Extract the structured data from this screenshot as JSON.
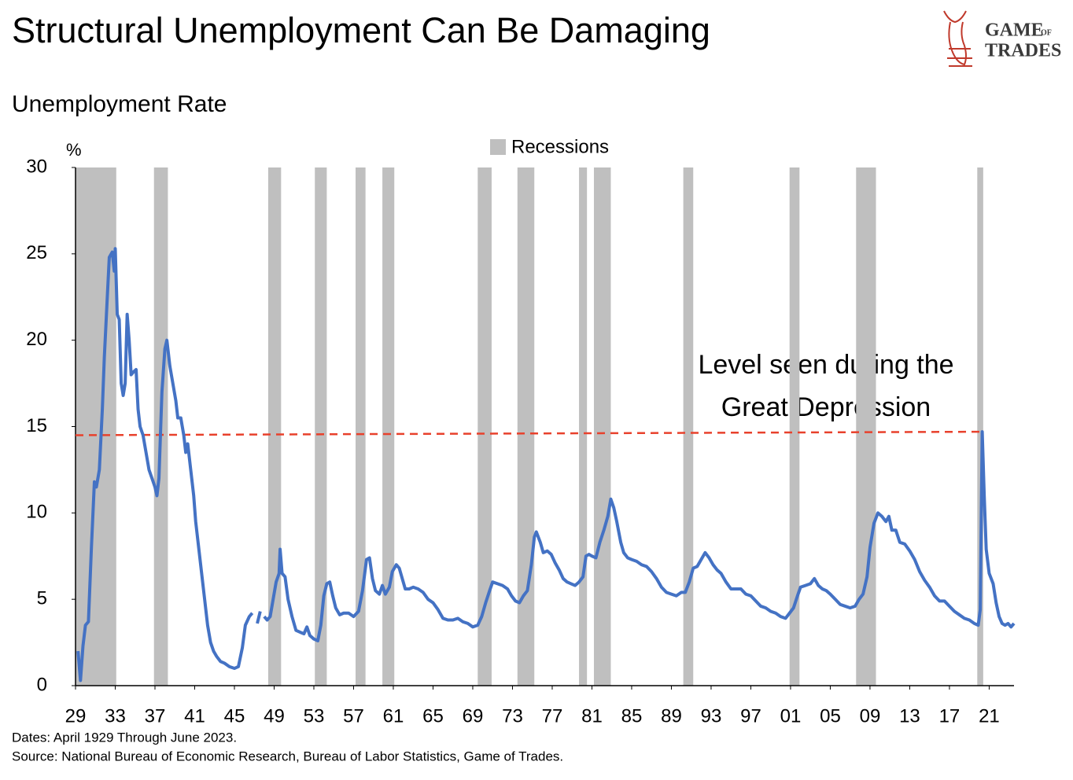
{
  "chart_data": {
    "type": "line",
    "title": "Structural Unemployment Can Be Damaging",
    "subtitle": "Unemployment Rate",
    "y_unit": "%",
    "xlim": [
      1929,
      2023.5
    ],
    "xticks": [
      {
        "value": 1929,
        "label": "29"
      },
      {
        "value": 1933,
        "label": "33"
      },
      {
        "value": 1937,
        "label": "37"
      },
      {
        "value": 1941,
        "label": "41"
      },
      {
        "value": 1945,
        "label": "45"
      },
      {
        "value": 1949,
        "label": "49"
      },
      {
        "value": 1953,
        "label": "53"
      },
      {
        "value": 1957,
        "label": "57"
      },
      {
        "value": 1961,
        "label": "61"
      },
      {
        "value": 1965,
        "label": "65"
      },
      {
        "value": 1969,
        "label": "69"
      },
      {
        "value": 1973,
        "label": "73"
      },
      {
        "value": 1977,
        "label": "77"
      },
      {
        "value": 1981,
        "label": "81"
      },
      {
        "value": 1985,
        "label": "85"
      },
      {
        "value": 1989,
        "label": "89"
      },
      {
        "value": 1993,
        "label": "93"
      },
      {
        "value": 1997,
        "label": "97"
      },
      {
        "value": 2001,
        "label": "01"
      },
      {
        "value": 2005,
        "label": "05"
      },
      {
        "value": 2009,
        "label": "09"
      },
      {
        "value": 2013,
        "label": "13"
      },
      {
        "value": 2017,
        "label": "17"
      },
      {
        "value": 2021,
        "label": "21"
      }
    ],
    "ylim": [
      0,
      30
    ],
    "yticks": [
      0,
      5,
      10,
      15,
      20,
      25,
      30
    ],
    "x": [
      1929.25,
      1929.5,
      1929.75,
      1930.0,
      1930.3,
      1930.6,
      1930.9,
      1931.1,
      1931.4,
      1931.7,
      1931.9,
      1932.2,
      1932.4,
      1932.7,
      1932.9,
      1933.0,
      1933.2,
      1933.4,
      1933.6,
      1933.8,
      1934.0,
      1934.2,
      1934.4,
      1934.6,
      1934.9,
      1935.1,
      1935.3,
      1935.5,
      1935.8,
      1936.1,
      1936.4,
      1936.7,
      1937.0,
      1937.2,
      1937.4,
      1937.7,
      1938.0,
      1938.2,
      1938.5,
      1938.8,
      1939.1,
      1939.3,
      1939.6,
      1939.9,
      1940.1,
      1940.3,
      1940.6,
      1940.9,
      1941.1,
      1941.4,
      1941.7,
      1942.0,
      1942.3,
      1942.6,
      1942.9,
      1943.2,
      1943.6,
      1944.0,
      1944.5,
      1945.0,
      1945.4,
      1945.8,
      1946.1,
      1946.5,
      1946.8,
      1947.0,
      1947.3,
      1947.6,
      1947.8,
      1948.0,
      1948.3,
      1948.6,
      1948.9,
      1949.2,
      1949.5,
      1949.6,
      1949.8,
      1950.1,
      1950.4,
      1950.8,
      1951.2,
      1951.6,
      1952.0,
      1952.3,
      1952.6,
      1953.0,
      1953.4,
      1953.7,
      1954.0,
      1954.3,
      1954.6,
      1954.9,
      1955.2,
      1955.6,
      1956.0,
      1956.5,
      1957.0,
      1957.5,
      1957.9,
      1958.3,
      1958.6,
      1958.9,
      1959.2,
      1959.6,
      1959.9,
      1960.2,
      1960.6,
      1960.9,
      1961.3,
      1961.6,
      1961.9,
      1962.2,
      1962.6,
      1963.0,
      1963.5,
      1964.0,
      1964.5,
      1965.0,
      1965.5,
      1966.0,
      1966.5,
      1967.0,
      1967.5,
      1968.0,
      1968.5,
      1969.0,
      1969.5,
      1969.9,
      1970.3,
      1970.7,
      1971.0,
      1971.5,
      1972.0,
      1972.5,
      1972.9,
      1973.3,
      1973.7,
      1974.1,
      1974.5,
      1974.9,
      1975.2,
      1975.4,
      1975.8,
      1976.1,
      1976.5,
      1976.9,
      1977.3,
      1977.7,
      1978.1,
      1978.5,
      1978.9,
      1979.3,
      1979.7,
      1980.1,
      1980.4,
      1980.7,
      1981.0,
      1981.4,
      1981.8,
      1982.2,
      1982.6,
      1982.9,
      1983.2,
      1983.5,
      1983.9,
      1984.2,
      1984.6,
      1985.0,
      1985.5,
      1986.0,
      1986.5,
      1987.0,
      1987.5,
      1988.0,
      1988.5,
      1989.0,
      1989.5,
      1990.0,
      1990.4,
      1990.8,
      1991.2,
      1991.6,
      1992.0,
      1992.4,
      1992.8,
      1993.2,
      1993.6,
      1994.0,
      1994.5,
      1995.0,
      1995.5,
      1996.0,
      1996.5,
      1997.0,
      1997.5,
      1998.0,
      1998.5,
      1999.0,
      1999.5,
      2000.0,
      2000.5,
      2000.9,
      2001.3,
      2001.7,
      2002.0,
      2002.5,
      2003.0,
      2003.4,
      2003.8,
      2004.2,
      2004.6,
      2005.0,
      2005.5,
      2006.0,
      2006.5,
      2007.0,
      2007.5,
      2007.9,
      2008.3,
      2008.7,
      2009.0,
      2009.4,
      2009.8,
      2010.2,
      2010.6,
      2010.9,
      2011.2,
      2011.6,
      2012.0,
      2012.5,
      2013.0,
      2013.5,
      2014.0,
      2014.5,
      2015.0,
      2015.5,
      2016.0,
      2016.5,
      2017.0,
      2017.5,
      2018.0,
      2018.5,
      2019.0,
      2019.5,
      2019.9,
      2020.1,
      2020.3,
      2020.5,
      2020.7,
      2021.0,
      2021.4,
      2021.7,
      2022.0,
      2022.3,
      2022.6,
      2022.9,
      2023.2,
      2023.5
    ],
    "series": [
      {
        "color": "#4472c4",
        "values": [
          2.0,
          0.3,
          2.3,
          3.5,
          3.7,
          8,
          11.8,
          11.5,
          12.5,
          16,
          19,
          22.5,
          24.8,
          25.1,
          24,
          25.3,
          21.5,
          21.2,
          17.5,
          16.8,
          17.5,
          21.5,
          20,
          18,
          18.2,
          18.3,
          16,
          15,
          14.5,
          13.5,
          12.5,
          12,
          11.5,
          11.0,
          12,
          17,
          19.5,
          20,
          18.5,
          17.5,
          16.5,
          15.5,
          15.5,
          14.5,
          13.5,
          14.0,
          12.5,
          11.0,
          9.5,
          8,
          6.5,
          5,
          3.5,
          2.5,
          2.0,
          1.7,
          1.4,
          1.3,
          1.1,
          1.0,
          1.1,
          2.2,
          3.5,
          4.0,
          4.2,
          null,
          3.6,
          4.3,
          null,
          4.0,
          3.8,
          4.0,
          5.0,
          6.0,
          6.5,
          7.9,
          6.5,
          6.3,
          5.0,
          4.0,
          3.2,
          3.1,
          3.0,
          3.4,
          2.9,
          2.7,
          2.6,
          3.5,
          5.2,
          5.9,
          6.0,
          5.2,
          4.5,
          4.1,
          4.2,
          4.2,
          4.0,
          4.3,
          5.5,
          7.3,
          7.4,
          6.2,
          5.5,
          5.3,
          5.8,
          5.3,
          5.7,
          6.6,
          7.0,
          6.8,
          6.2,
          5.6,
          5.6,
          5.7,
          5.6,
          5.4,
          5.0,
          4.8,
          4.4,
          3.9,
          3.8,
          3.8,
          3.9,
          3.7,
          3.6,
          3.4,
          3.5,
          4.0,
          4.8,
          5.5,
          6.0,
          5.9,
          5.8,
          5.6,
          5.2,
          4.9,
          4.8,
          5.2,
          5.5,
          7.0,
          8.6,
          8.9,
          8.3,
          7.7,
          7.8,
          7.6,
          7.1,
          6.7,
          6.2,
          6.0,
          5.9,
          5.8,
          6.0,
          6.3,
          7.5,
          7.6,
          7.5,
          7.4,
          8.3,
          9.0,
          9.8,
          10.8,
          10.3,
          9.5,
          8.3,
          7.7,
          7.4,
          7.3,
          7.2,
          7.0,
          6.9,
          6.6,
          6.2,
          5.7,
          5.4,
          5.3,
          5.2,
          5.4,
          5.4,
          6.0,
          6.8,
          6.9,
          7.3,
          7.7,
          7.4,
          7.0,
          6.7,
          6.5,
          6.0,
          5.6,
          5.6,
          5.6,
          5.3,
          5.2,
          4.9,
          4.6,
          4.5,
          4.3,
          4.2,
          4.0,
          3.9,
          4.2,
          4.5,
          5.2,
          5.7,
          5.8,
          5.9,
          6.2,
          5.8,
          5.6,
          5.5,
          5.3,
          5.0,
          4.7,
          4.6,
          4.5,
          4.6,
          5.0,
          5.3,
          6.3,
          8.0,
          9.4,
          10.0,
          9.8,
          9.5,
          9.8,
          9.0,
          9.0,
          8.3,
          8.2,
          7.8,
          7.3,
          6.6,
          6.1,
          5.7,
          5.2,
          4.9,
          4.9,
          4.6,
          4.3,
          4.1,
          3.9,
          3.8,
          3.6,
          3.5,
          4.4,
          14.7,
          11.0,
          7.9,
          6.5,
          5.9,
          4.8,
          4.0,
          3.6,
          3.5,
          3.6,
          3.4,
          3.6
        ]
      }
    ],
    "recessions": {
      "name": "Recessions",
      "color": "#bfbfbf",
      "ranges": [
        [
          1929.0,
          1933.1
        ],
        [
          1936.9,
          1938.3
        ],
        [
          1948.4,
          1949.7
        ],
        [
          1953.1,
          1954.3
        ],
        [
          1957.2,
          1958.2
        ],
        [
          1959.9,
          1961.1
        ],
        [
          1969.5,
          1970.9
        ],
        [
          1973.5,
          1975.2
        ],
        [
          1979.7,
          1980.5
        ],
        [
          1981.2,
          1982.9
        ],
        [
          1990.2,
          1991.2
        ],
        [
          2000.9,
          2001.9
        ],
        [
          2007.6,
          2009.6
        ],
        [
          2019.8,
          2020.4
        ]
      ]
    },
    "reference_line": {
      "color": "#e8412c",
      "x": [
        1929,
        2020.3
      ],
      "values": [
        14.5,
        14.7
      ]
    },
    "annotation": [
      "Level seen during the",
      "Great Depression"
    ],
    "notes": [
      "Dates: April 1929 Through June 2023.",
      "Source: National Bureau of Economic Research, Bureau of Labor Statistics, Game of Trades."
    ]
  },
  "logo": {
    "game": "GAME",
    "of": "OF",
    "trades": "TRADES"
  }
}
